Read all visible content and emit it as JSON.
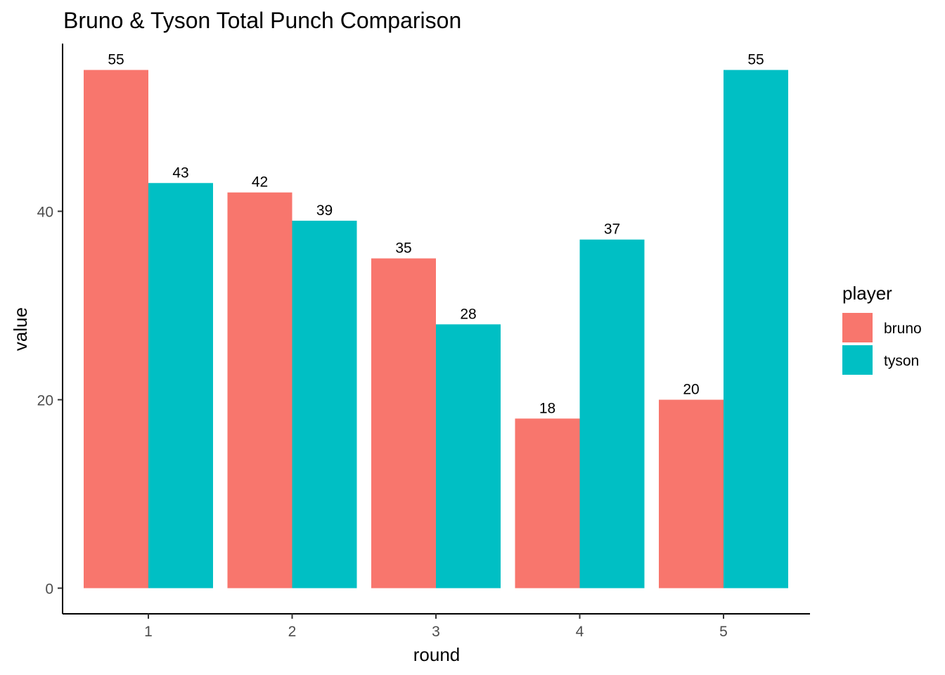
{
  "chart_data": {
    "type": "bar",
    "title": "Bruno & Tyson Total Punch Comparison",
    "xlabel": "round",
    "ylabel": "value",
    "categories": [
      "1",
      "2",
      "3",
      "4",
      "5"
    ],
    "series": [
      {
        "name": "bruno",
        "color": "#F8766D",
        "values": [
          55,
          42,
          35,
          18,
          20
        ]
      },
      {
        "name": "tyson",
        "color": "#00BFC4",
        "values": [
          43,
          39,
          28,
          37,
          55
        ]
      }
    ],
    "yticks": [
      "0",
      "20",
      "40"
    ],
    "ylim": [
      0,
      55
    ],
    "grid": false,
    "legend": {
      "title": "player",
      "placement": "right"
    },
    "data_labels": true
  }
}
